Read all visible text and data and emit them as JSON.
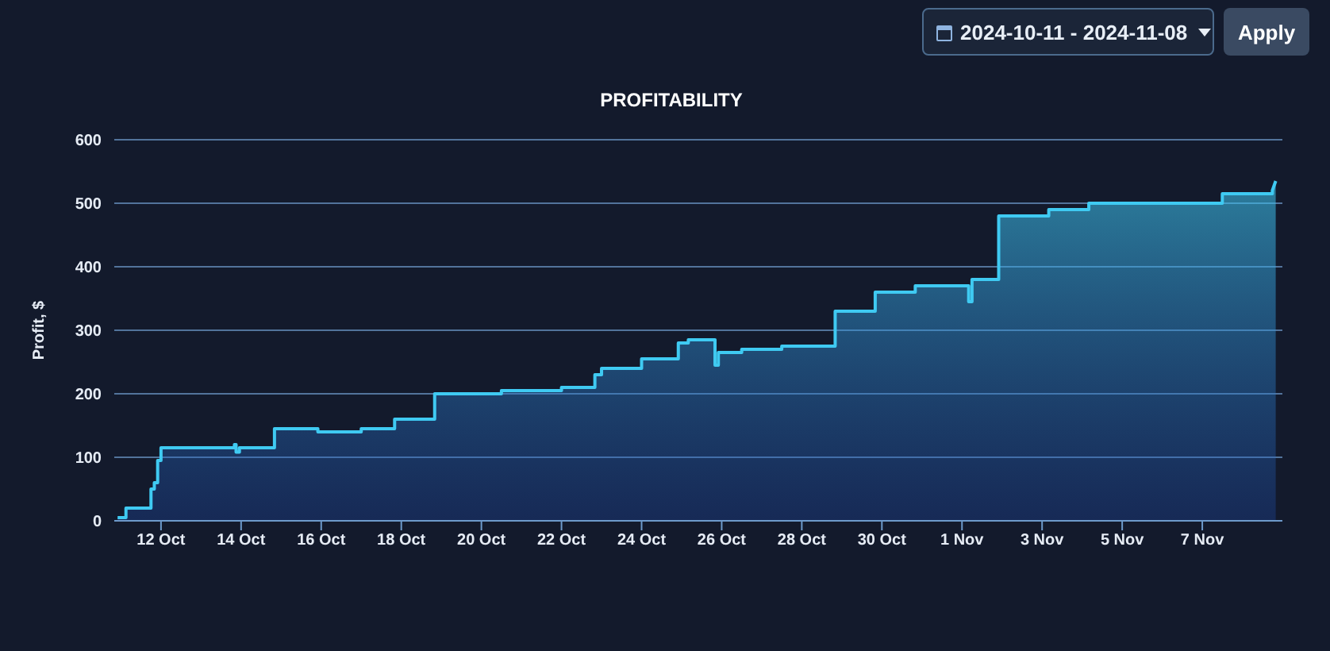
{
  "chart_data": {
    "type": "area",
    "title": "PROFITABILITY",
    "ylabel": "Profit, $",
    "x": [
      "2024-10-10T22:00",
      "2024-10-11T03:00",
      "2024-10-11T03:00",
      "2024-10-11T18:00",
      "2024-10-11T18:00",
      "2024-10-11T20:00",
      "2024-10-11T20:00",
      "2024-10-11T22:00",
      "2024-10-11T22:00",
      "2024-10-12T00:00",
      "2024-10-12T00:00",
      "2024-10-13T20:00",
      "2024-10-13T20:00",
      "2024-10-13T21:00",
      "2024-10-13T21:00",
      "2024-10-13T23:00",
      "2024-10-13T23:00",
      "2024-10-14T20:00",
      "2024-10-14T20:00",
      "2024-10-15T22:00",
      "2024-10-15T22:00",
      "2024-10-17T00:00",
      "2024-10-17T00:00",
      "2024-10-17T20:00",
      "2024-10-17T20:00",
      "2024-10-18T20:00",
      "2024-10-18T20:00",
      "2024-10-20T12:00",
      "2024-10-20T12:00",
      "2024-10-22T00:00",
      "2024-10-22T00:00",
      "2024-10-22T20:00",
      "2024-10-22T20:00",
      "2024-10-23T00:00",
      "2024-10-23T00:00",
      "2024-10-24T00:00",
      "2024-10-24T00:00",
      "2024-10-24T22:00",
      "2024-10-24T22:00",
      "2024-10-25T04:00",
      "2024-10-25T04:00",
      "2024-10-25T20:00",
      "2024-10-25T20:00",
      "2024-10-25T22:00",
      "2024-10-25T22:00",
      "2024-10-26T12:00",
      "2024-10-26T12:00",
      "2024-10-27T12:00",
      "2024-10-27T12:00",
      "2024-10-28T20:00",
      "2024-10-28T20:00",
      "2024-10-29T20:00",
      "2024-10-29T20:00",
      "2024-10-30T20:00",
      "2024-10-30T20:00",
      "2024-11-01T04:00",
      "2024-11-01T04:00",
      "2024-11-01T06:00",
      "2024-11-01T06:00",
      "2024-11-01T22:00",
      "2024-11-01T22:00",
      "2024-11-03T04:00",
      "2024-11-03T04:00",
      "2024-11-04T04:00",
      "2024-11-04T04:00",
      "2024-11-07T12:00",
      "2024-11-07T12:00",
      "2024-11-08T18:00",
      "2024-11-08T18:00",
      "2024-11-08T20:00"
    ],
    "series": [
      {
        "color": "#3fcaf2",
        "values": [
          5,
          5,
          20,
          20,
          50,
          50,
          60,
          60,
          95,
          95,
          115,
          115,
          120,
          120,
          108,
          108,
          115,
          115,
          145,
          145,
          140,
          140,
          145,
          145,
          160,
          160,
          200,
          200,
          205,
          205,
          210,
          210,
          230,
          230,
          240,
          240,
          255,
          255,
          280,
          280,
          285,
          285,
          245,
          245,
          265,
          265,
          270,
          270,
          275,
          275,
          330,
          330,
          360,
          360,
          370,
          370,
          345,
          345,
          380,
          380,
          480,
          480,
          490,
          490,
          500,
          500,
          515,
          515,
          520,
          535
        ]
      }
    ],
    "xlim": [
      "2024-10-10T20:00",
      "2024-11-09T00:00"
    ],
    "xticks": [
      {
        "value": "2024-10-12",
        "label": "12 Oct"
      },
      {
        "value": "2024-10-14",
        "label": "14 Oct"
      },
      {
        "value": "2024-10-16",
        "label": "16 Oct"
      },
      {
        "value": "2024-10-18",
        "label": "18 Oct"
      },
      {
        "value": "2024-10-20",
        "label": "20 Oct"
      },
      {
        "value": "2024-10-22",
        "label": "22 Oct"
      },
      {
        "value": "2024-10-24",
        "label": "24 Oct"
      },
      {
        "value": "2024-10-26",
        "label": "26 Oct"
      },
      {
        "value": "2024-10-28",
        "label": "28 Oct"
      },
      {
        "value": "2024-10-30",
        "label": "30 Oct"
      },
      {
        "value": "2024-11-01",
        "label": "1 Nov"
      },
      {
        "value": "2024-11-03",
        "label": "3 Nov"
      },
      {
        "value": "2024-11-05",
        "label": "5 Nov"
      },
      {
        "value": "2024-11-07",
        "label": "7 Nov"
      }
    ],
    "ylim": [
      0,
      600
    ],
    "yticks": [
      0,
      100,
      200,
      300,
      400,
      500,
      600
    ],
    "grid": "y",
    "annotations": [
      "2024-10-11 - 2024-11-08",
      "Apply"
    ]
  }
}
